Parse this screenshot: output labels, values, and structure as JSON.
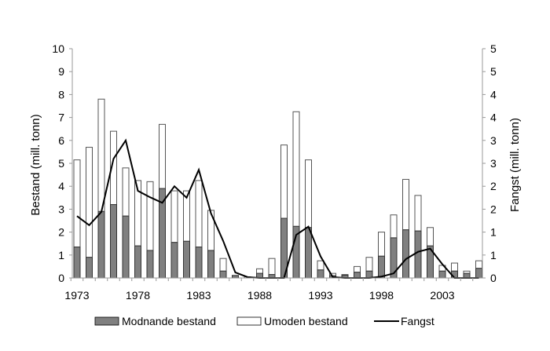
{
  "chart_data": {
    "type": "bar",
    "stacked": true,
    "x": [
      1973,
      1974,
      1975,
      1976,
      1977,
      1978,
      1979,
      1980,
      1981,
      1982,
      1983,
      1984,
      1985,
      1986,
      1987,
      1988,
      1989,
      1990,
      1991,
      1992,
      1993,
      1994,
      1995,
      1996,
      1997,
      1998,
      1999,
      2000,
      2001,
      2002,
      2003,
      2004,
      2005,
      2006
    ],
    "xtick_labels": [
      "1973",
      "1978",
      "1983",
      "1988",
      "1993",
      "1998",
      "2003"
    ],
    "ylabel": "Bestand (mill. tonn)",
    "ylabel_right": "Fangst (mill. tonn)",
    "ylim": [
      0,
      10
    ],
    "ylim_right": [
      0,
      5
    ],
    "yticks": [
      "0",
      "1",
      "2",
      "3",
      "4",
      "5",
      "6",
      "7",
      "8",
      "9",
      "10"
    ],
    "yticks_right": [
      "0",
      "1",
      "1",
      "2",
      "2",
      "3",
      "3",
      "4",
      "4",
      "5",
      "5"
    ],
    "grid": false,
    "legend_placement": "bottom",
    "series": [
      {
        "name": "Modnande bestand",
        "type": "bar",
        "axis": "left",
        "color": "#808080",
        "values": [
          1.35,
          0.9,
          2.9,
          3.2,
          2.7,
          1.4,
          1.2,
          3.9,
          1.55,
          1.6,
          1.35,
          1.2,
          0.3,
          0.07,
          0,
          0.2,
          0.15,
          2.6,
          2.25,
          2.2,
          0.35,
          0.1,
          0.12,
          0.25,
          0.3,
          0.95,
          1.75,
          2.1,
          2.05,
          1.4,
          0.3,
          0.3,
          0.2,
          0.42
        ]
      },
      {
        "name": "Umoden bestand",
        "type": "bar",
        "axis": "left",
        "color": "#ffffff",
        "total_values": [
          5.15,
          5.7,
          7.8,
          6.4,
          4.8,
          4.25,
          4.2,
          6.7,
          3.8,
          3.8,
          4.25,
          2.95,
          0.85,
          0.12,
          0.05,
          0.4,
          0.85,
          5.8,
          7.25,
          5.15,
          0.75,
          0.2,
          0.15,
          0.5,
          0.9,
          2.0,
          2.75,
          4.3,
          3.6,
          2.2,
          0.55,
          0.65,
          0.3,
          0.75
        ]
      },
      {
        "name": "Fangst",
        "type": "line",
        "axis": "right",
        "color": "#000000",
        "values": [
          1.35,
          1.15,
          1.44,
          2.6,
          3.0,
          1.9,
          1.76,
          1.64,
          2.0,
          1.75,
          2.36,
          1.41,
          0.81,
          0.12,
          0.02,
          0,
          0,
          0,
          0.94,
          1.12,
          0.47,
          0.02,
          0,
          0,
          0,
          0.03,
          0.1,
          0.41,
          0.57,
          0.64,
          0.3,
          0,
          0,
          0
        ]
      }
    ]
  }
}
